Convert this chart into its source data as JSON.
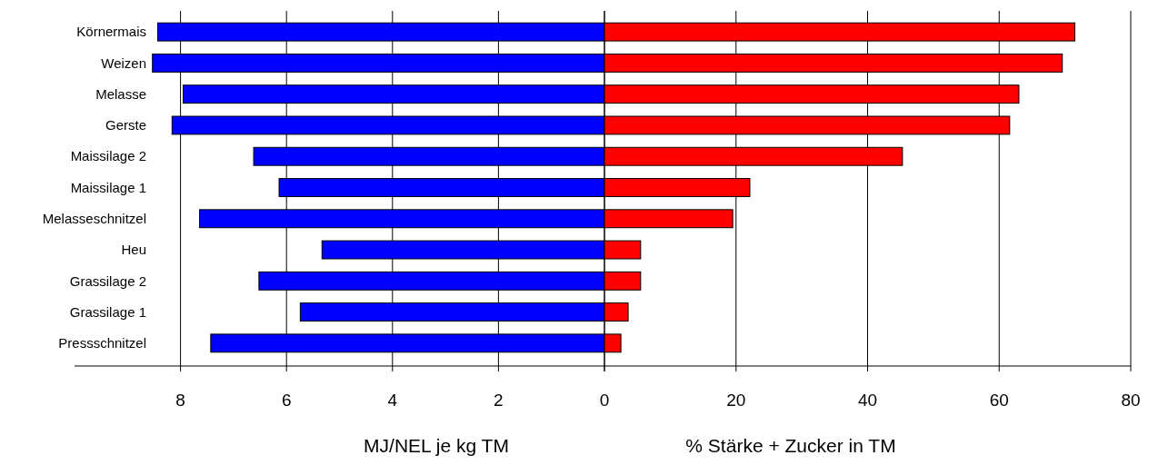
{
  "chart_data": [
    {
      "type": "bar",
      "orientation": "horizontal",
      "categories": [
        "Körnermais",
        "Weizen",
        "Melasse",
        "Gerste",
        "Maissilage 2",
        "Maissilage 1",
        "Melasseschnitzel",
        "Heu",
        "Grassilage 2",
        "Grassilage 1",
        "Pressschnitzel"
      ],
      "values": [
        8.43,
        8.53,
        7.95,
        8.16,
        6.62,
        6.14,
        7.64,
        5.33,
        6.52,
        5.74,
        7.43
      ],
      "color": "#0000ff",
      "xlim": [
        10,
        0
      ],
      "xticks": [
        8,
        6,
        4,
        2,
        0
      ],
      "grid": "x",
      "xlabel": "MJ/NEL je kg TM"
    },
    {
      "type": "bar",
      "orientation": "horizontal",
      "categories": [
        null,
        null,
        null,
        null,
        null,
        null,
        null,
        null,
        null,
        null,
        null
      ],
      "values": [
        71.5,
        69.6,
        63,
        61.6,
        45.3,
        22.1,
        19.5,
        5.5,
        5.5,
        3.6,
        2.5
      ],
      "color": "#ff0000",
      "xlim": [
        0,
        80
      ],
      "xticks": [
        {
          "value": 0,
          "label": null
        },
        20,
        40,
        60,
        80
      ],
      "grid": "x",
      "tick_labels": "x",
      "xlabel": "% Stärke + Zucker in TM"
    }
  ]
}
